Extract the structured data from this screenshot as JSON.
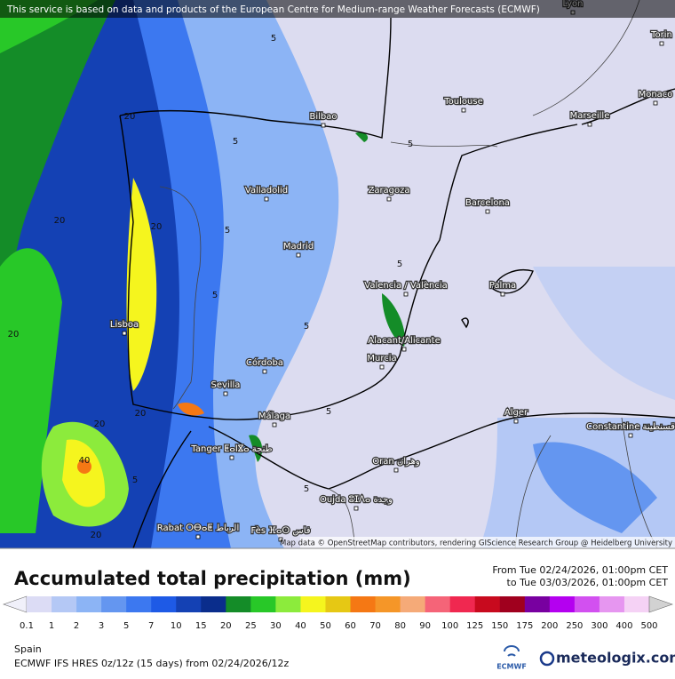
{
  "header": {
    "notice": "This service is based on data and products of the European Centre for Medium-range Weather Forecasts (ECMWF)"
  },
  "map": {
    "cities": [
      "Lyon",
      "Torin",
      "Monaco",
      "Toulouse",
      "Marseille",
      "Bilbao",
      "Valladolid",
      "Zaragoza",
      "Barcelona",
      "Madrid",
      "Valencia / València",
      "Palma",
      "Lisboa",
      "Alacant/Alicante",
      "Murcia",
      "Córdoba",
      "Sevilla",
      "Málaga",
      "Alger",
      "Constantine قسنطينة",
      "Tanger ⵟⴰⵏⴵⴰ طنجة",
      "Oran وهران",
      "Oujda ⵓⵊⴷⴰ وجدة",
      "Rabat ⵔⴱⴰⵟ الرباط",
      "Fès ⴼⴰⵙ فاس"
    ],
    "contour_labels": [
      "20",
      "5",
      "20",
      "20",
      "5",
      "5",
      "20",
      "5",
      "20",
      "40",
      "5",
      "20",
      "5",
      "5",
      "20",
      "5",
      "5",
      "5"
    ],
    "attribution": "Map data © OpenStreetMap contributors, rendering GIScience Research Group @ Heidelberg University"
  },
  "legend": {
    "title": "Accumulated total precipitation (mm)",
    "period_from": "From Tue 02/24/2026, 01:00pm CET",
    "period_to": "to Tue 03/03/2026, 01:00pm CET",
    "levels": [
      0.1,
      1,
      2,
      3,
      5,
      7,
      10,
      15,
      20,
      25,
      30,
      40,
      50,
      60,
      70,
      80,
      90,
      100,
      125,
      150,
      175,
      200,
      250,
      300,
      400,
      500
    ],
    "colors": [
      "#f0f0fa",
      "#dcdcf5",
      "#b4c8f5",
      "#8cb4f5",
      "#6496f0",
      "#3c78f0",
      "#1e5ae6",
      "#1441b4",
      "#0a2d8c",
      "#148c28",
      "#28c828",
      "#8ceb3c",
      "#f5f51e",
      "#e6c814",
      "#f57814",
      "#f59628",
      "#f5aa78",
      "#f56478",
      "#f02850",
      "#c80a1e",
      "#a0001e",
      "#7800a0",
      "#b400f0",
      "#d250f0",
      "#e696f0",
      "#f5d2f5",
      "#d2d2d2"
    ]
  },
  "footer": {
    "region": "Spain",
    "model": "ECMWF IFS HRES 0z/12z (15 days) from 02/24/2026/12z",
    "ecmwf": "ECMWF",
    "brand": "meteologix.com"
  }
}
